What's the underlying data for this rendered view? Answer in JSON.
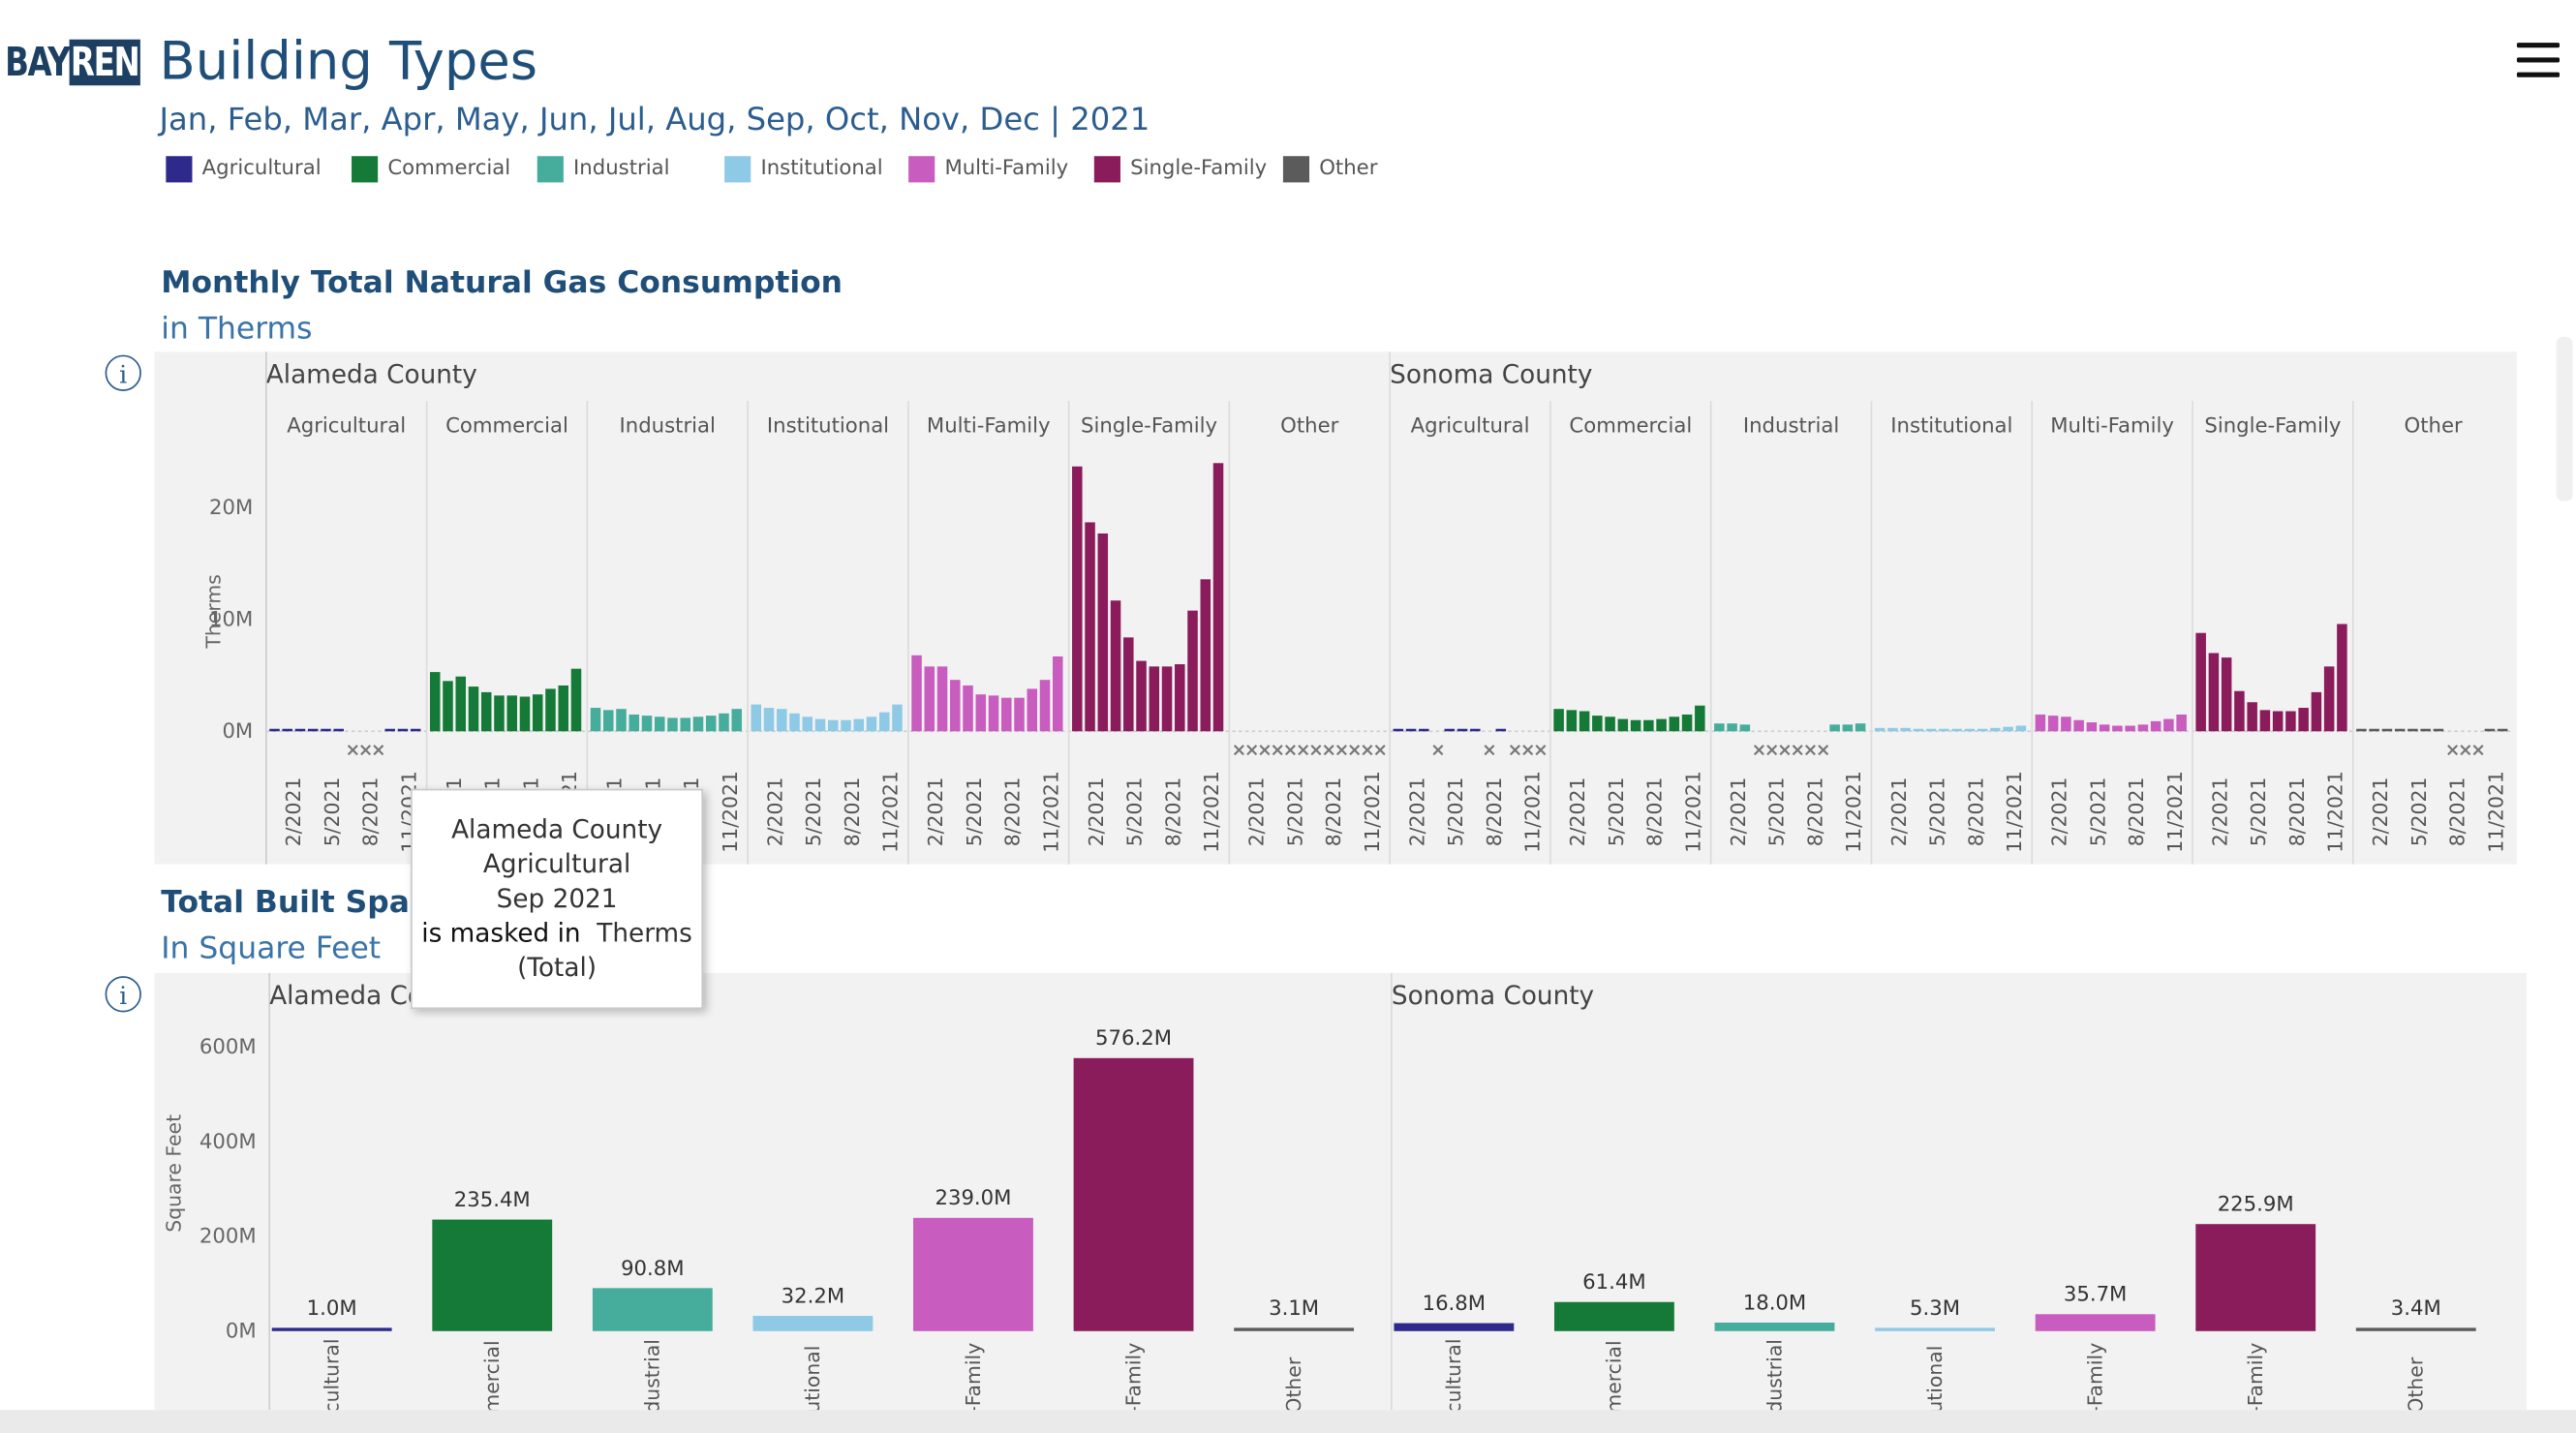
{
  "header": {
    "logo_left": "BAY",
    "logo_right": "REN",
    "title": "Building Types",
    "subtitle": "Jan, Feb, Mar, Apr, May, Jun, Jul, Aug, Sep, Oct, Nov, Dec | 2021"
  },
  "legend": [
    {
      "label": "Agricultural",
      "color": "#2e2a8c"
    },
    {
      "label": "Commercial",
      "color": "#157a37"
    },
    {
      "label": "Industrial",
      "color": "#46ad9c"
    },
    {
      "label": "Institutional",
      "color": "#8ecae6"
    },
    {
      "label": "Multi-Family",
      "color": "#c85cbf"
    },
    {
      "label": "Single-Family",
      "color": "#8a1c5b"
    },
    {
      "label": "Other",
      "color": "#5b5b5b"
    }
  ],
  "icons": {
    "menu": "hamburger-menu-icon",
    "info": "info-circle-icon"
  },
  "section1": {
    "title": "Monthly Total Natural Gas Consumption",
    "subtitle": "in Therms"
  },
  "section2": {
    "title": "Total Built Space",
    "subtitle": "In Square Feet"
  },
  "tooltip": {
    "line1": "Alameda County",
    "line2": "Agricultural",
    "line3": "Sep 2021",
    "line4_bold": "is masked in",
    "line4_rest": "Therms",
    "line5": "(Total)"
  },
  "chart_data": [
    {
      "type": "bar",
      "title": "Monthly Total Natural Gas Consumption",
      "ylabel": "Therms",
      "ylim": [
        0,
        24000000
      ],
      "yticks": [
        0,
        10000000,
        20000000
      ],
      "ytick_labels": [
        "0M",
        "10M",
        "20M"
      ],
      "xtick_labels": [
        "2/2021",
        "5/2021",
        "8/2021",
        "11/2021"
      ],
      "months": [
        "Jan",
        "Feb",
        "Mar",
        "Apr",
        "May",
        "Jun",
        "Jul",
        "Aug",
        "Sep",
        "Oct",
        "Nov",
        "Dec"
      ],
      "masked_marker": "×",
      "categories": [
        "Agricultural",
        "Commercial",
        "Industrial",
        "Institutional",
        "Multi-Family",
        "Single-Family",
        "Other"
      ],
      "panels": [
        {
          "county": "Alameda County",
          "series": [
            {
              "name": "Agricultural",
              "values": [
                0.1,
                0.1,
                0.1,
                0.1,
                0.1,
                0.1,
                null,
                null,
                null,
                0.1,
                0.1,
                0.1
              ]
            },
            {
              "name": "Commercial",
              "values": [
                5.3,
                4.5,
                4.9,
                4.0,
                3.5,
                3.2,
                3.2,
                3.1,
                3.3,
                3.8,
                4.1,
                5.6
              ]
            },
            {
              "name": "Industrial",
              "values": [
                2.1,
                1.9,
                2.0,
                1.5,
                1.4,
                1.3,
                1.2,
                1.2,
                1.3,
                1.4,
                1.6,
                2.0
              ]
            },
            {
              "name": "Institutional",
              "values": [
                2.4,
                2.1,
                2.0,
                1.6,
                1.3,
                1.1,
                1.0,
                1.0,
                1.1,
                1.3,
                1.7,
                2.4
              ]
            },
            {
              "name": "Multi-Family",
              "values": [
                6.8,
                5.8,
                5.8,
                4.6,
                4.1,
                3.3,
                3.2,
                3.0,
                3.0,
                3.8,
                4.6,
                6.7
              ]
            },
            {
              "name": "Single-Family",
              "values": [
                23.7,
                18.7,
                17.7,
                11.7,
                8.4,
                6.3,
                5.8,
                5.8,
                6.0,
                10.8,
                13.6,
                24.0
              ]
            },
            {
              "name": "Other",
              "values": [
                null,
                null,
                null,
                null,
                null,
                null,
                null,
                null,
                null,
                null,
                null,
                null
              ]
            }
          ]
        },
        {
          "county": "Sonoma County",
          "series": [
            {
              "name": "Agricultural",
              "values": [
                0.15,
                0.15,
                0.15,
                null,
                0.15,
                0.15,
                0.15,
                null,
                0.15,
                null,
                null,
                null
              ]
            },
            {
              "name": "Commercial",
              "values": [
                2.0,
                1.9,
                1.8,
                1.4,
                1.3,
                1.1,
                1.0,
                1.0,
                1.1,
                1.3,
                1.5,
                2.3
              ]
            },
            {
              "name": "Industrial",
              "values": [
                0.7,
                0.7,
                0.6,
                null,
                null,
                null,
                null,
                null,
                null,
                0.6,
                0.6,
                0.7
              ]
            },
            {
              "name": "Institutional",
              "values": [
                0.3,
                0.3,
                0.3,
                0.2,
                0.2,
                0.2,
                0.2,
                0.15,
                0.2,
                0.3,
                0.4,
                0.5
              ]
            },
            {
              "name": "Multi-Family",
              "values": [
                1.5,
                1.4,
                1.3,
                1.0,
                0.8,
                0.6,
                0.5,
                0.5,
                0.6,
                0.9,
                1.1,
                1.5
              ]
            },
            {
              "name": "Single-Family",
              "values": [
                8.8,
                7.0,
                6.6,
                3.6,
                2.6,
                1.9,
                1.8,
                1.8,
                2.1,
                3.5,
                5.8,
                9.6
              ]
            },
            {
              "name": "Other",
              "values": [
                0.1,
                0.1,
                0.1,
                0.1,
                0.1,
                0.1,
                0.1,
                null,
                null,
                null,
                0.1,
                0.1
              ]
            }
          ]
        }
      ]
    },
    {
      "type": "bar",
      "title": "Total Built Space",
      "ylabel": "Square Feet",
      "ylim": [
        0,
        640000000
      ],
      "yticks": [
        0,
        200000000,
        400000000,
        600000000
      ],
      "ytick_labels": [
        "0M",
        "200M",
        "400M",
        "600M"
      ],
      "categories": [
        "Agricultural",
        "Commercial",
        "Industrial",
        "Institutional",
        "Multi-Family",
        "Single-Family",
        "Other"
      ],
      "xtick_labels_visible": [
        "cultural",
        "mercial",
        "dustrial",
        "utional",
        "-Family",
        "-Family",
        "Other"
      ],
      "panels": [
        {
          "county": "Alameda County",
          "county_visible": "Alameda Co",
          "values": [
            1.0,
            235.4,
            90.8,
            32.2,
            239.0,
            576.2,
            3.1
          ],
          "value_labels": [
            "1.0M",
            "235.4M",
            "90.8M",
            "32.2M",
            "239.0M",
            "576.2M",
            "3.1M"
          ]
        },
        {
          "county": "Sonoma County",
          "county_visible": "Sonoma County",
          "values": [
            16.8,
            61.4,
            18.0,
            5.3,
            35.7,
            225.9,
            3.4
          ],
          "value_labels": [
            "16.8M",
            "61.4M",
            "18.0M",
            "5.3M",
            "35.7M",
            "225.9M",
            "3.4M"
          ]
        }
      ]
    }
  ]
}
